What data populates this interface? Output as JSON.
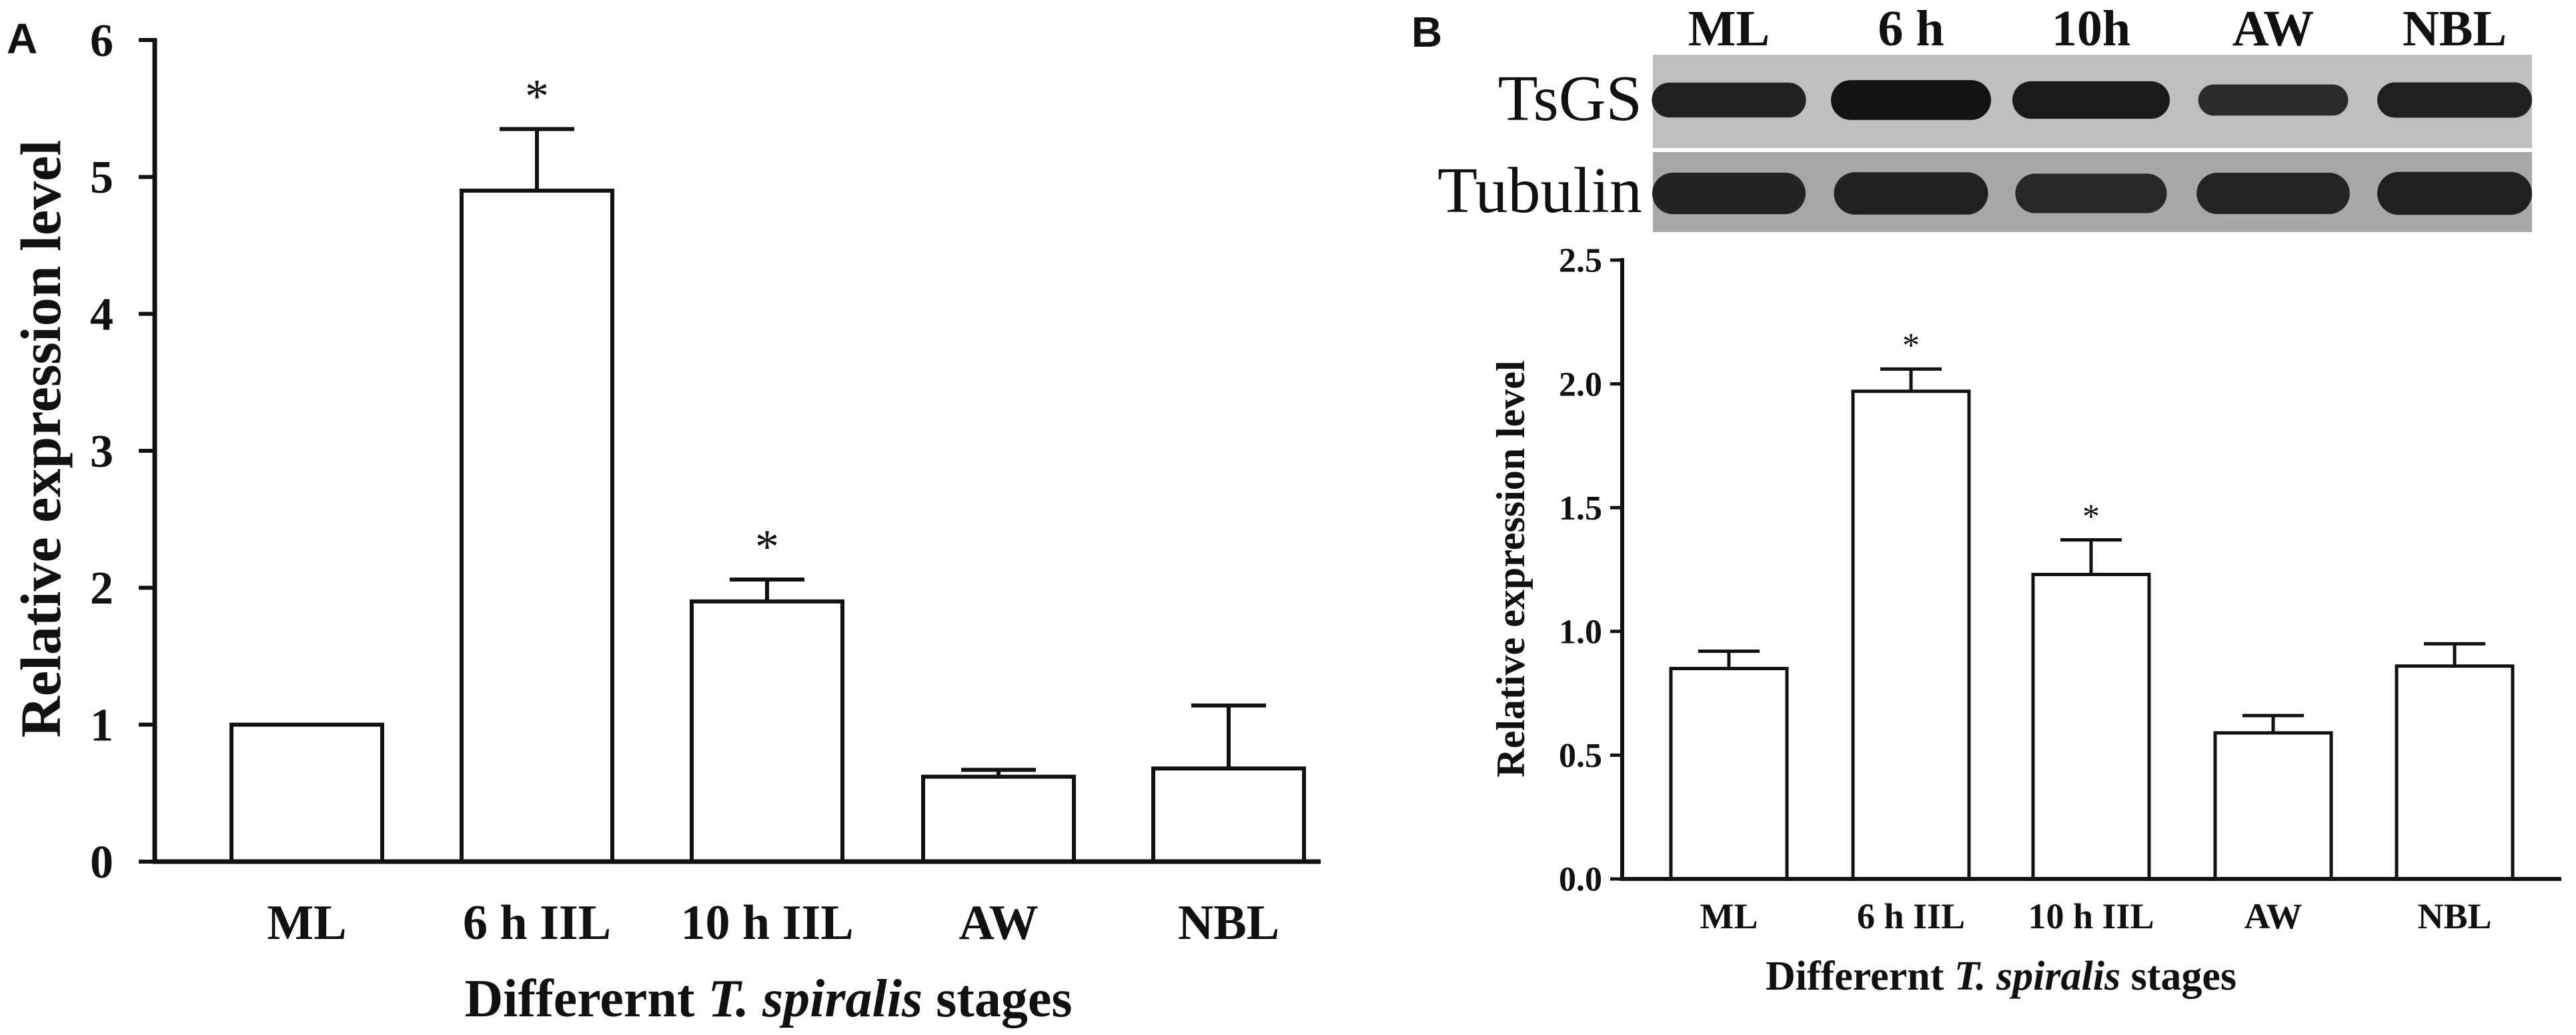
{
  "chart_data": [
    {
      "panel": "A",
      "type": "bar",
      "categories": [
        "ML",
        "6 h IIL",
        "10 h IIL",
        "AW",
        "NBL"
      ],
      "values": [
        1.0,
        4.9,
        1.9,
        0.62,
        0.68
      ],
      "errors": [
        0.0,
        0.45,
        0.16,
        0.05,
        0.46
      ],
      "significance": [
        "",
        "*",
        "*",
        "",
        ""
      ],
      "ylabel": "Relative expression level",
      "xlabel_parts": [
        {
          "text": "Differernt ",
          "italic": false
        },
        {
          "text": "T. spiralis",
          "italic": true
        },
        {
          "text": " stages",
          "italic": false
        }
      ],
      "ylim": [
        0,
        6
      ],
      "yticks": [
        "0",
        "1",
        "2",
        "3",
        "4",
        "5",
        "6"
      ],
      "grid": false,
      "legend": "none"
    },
    {
      "panel": "B",
      "type": "bar",
      "categories": [
        "ML",
        "6 h IIL",
        "10 h IIL",
        "AW",
        "NBL"
      ],
      "values": [
        0.85,
        1.97,
        1.23,
        0.59,
        0.86
      ],
      "errors": [
        0.07,
        0.09,
        0.14,
        0.07,
        0.09
      ],
      "significance": [
        "",
        "*",
        "*",
        "",
        ""
      ],
      "ylabel": "Relative expression level",
      "xlabel_parts": [
        {
          "text": "Differernt ",
          "italic": false
        },
        {
          "text": "T. spiralis",
          "italic": true
        },
        {
          "text": " stages",
          "italic": false
        }
      ],
      "ylim": [
        0,
        2.5
      ],
      "yticks": [
        "0.0",
        "0.5",
        "1.0",
        "1.5",
        "2.0",
        "2.5"
      ],
      "grid": false,
      "legend": "none"
    }
  ],
  "western_blot": {
    "lanes": [
      "ML",
      "6 h",
      "10h",
      "AW",
      "NBL"
    ],
    "rows": [
      {
        "label": "TsGS",
        "intensity": [
          0.78,
          1.0,
          0.9,
          0.62,
          0.8
        ]
      },
      {
        "label": "Tubulin",
        "intensity": [
          0.75,
          0.78,
          0.68,
          0.74,
          0.8
        ]
      }
    ]
  },
  "colors": {
    "axis": "#111111",
    "bar_fill": "#ffffff",
    "blot_bg": "#cfcfcf",
    "band": "#141414"
  }
}
